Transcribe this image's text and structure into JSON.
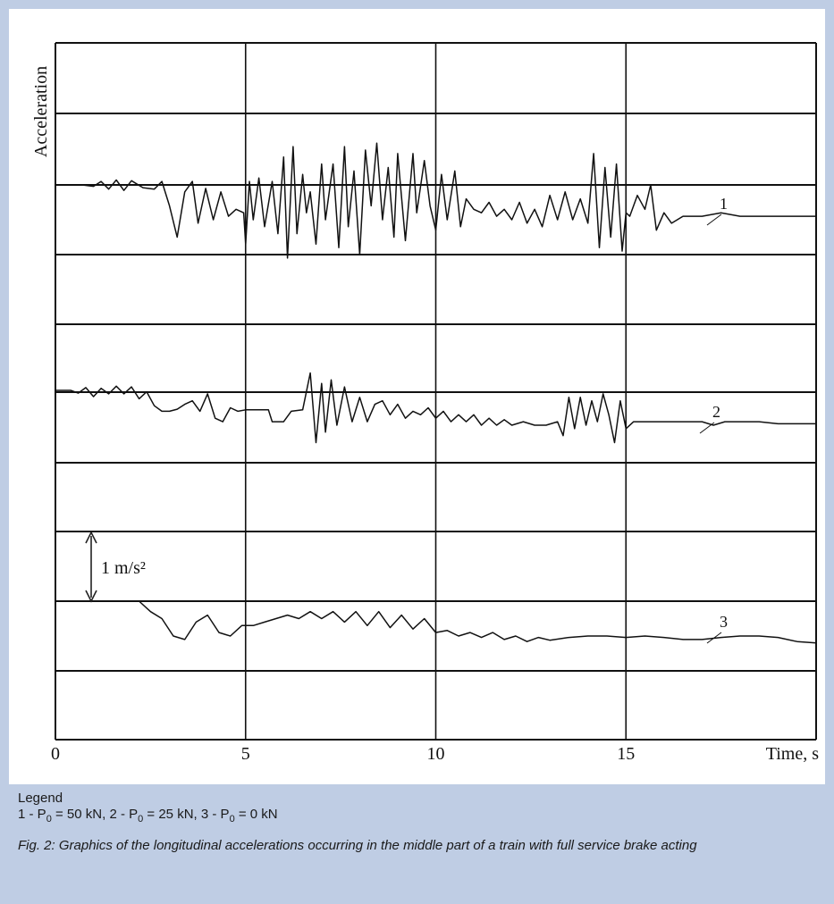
{
  "chart_data": {
    "type": "line",
    "xlabel": "Time, s",
    "ylabel": "Acceleration",
    "xlim": [
      0,
      20
    ],
    "xticks": [
      "0",
      "5",
      "10",
      "15"
    ],
    "scale_bar": {
      "label": "1 m/s²",
      "value": 1,
      "unit": "m/s²"
    },
    "grid": true,
    "series": [
      {
        "name": "1",
        "points": [
          [
            0,
            0.0
          ],
          [
            0.7,
            0.0
          ],
          [
            1.0,
            -0.02
          ],
          [
            1.2,
            0.05
          ],
          [
            1.4,
            -0.06
          ],
          [
            1.6,
            0.07
          ],
          [
            1.8,
            -0.08
          ],
          [
            2.0,
            0.06
          ],
          [
            2.3,
            -0.04
          ],
          [
            2.6,
            -0.06
          ],
          [
            2.8,
            0.05
          ],
          [
            3.0,
            -0.3
          ],
          [
            3.2,
            -0.75
          ],
          [
            3.4,
            -0.1
          ],
          [
            3.6,
            0.05
          ],
          [
            3.75,
            -0.55
          ],
          [
            3.95,
            -0.05
          ],
          [
            4.15,
            -0.5
          ],
          [
            4.35,
            -0.1
          ],
          [
            4.55,
            -0.45
          ],
          [
            4.75,
            -0.35
          ],
          [
            4.95,
            -0.4
          ],
          [
            5.0,
            -0.85
          ],
          [
            5.1,
            0.05
          ],
          [
            5.2,
            -0.5
          ],
          [
            5.35,
            0.1
          ],
          [
            5.5,
            -0.6
          ],
          [
            5.7,
            0.05
          ],
          [
            5.85,
            -0.7
          ],
          [
            6.0,
            0.4
          ],
          [
            6.1,
            -1.05
          ],
          [
            6.25,
            0.55
          ],
          [
            6.35,
            -0.7
          ],
          [
            6.5,
            0.15
          ],
          [
            6.6,
            -0.4
          ],
          [
            6.7,
            -0.1
          ],
          [
            6.85,
            -0.85
          ],
          [
            7.0,
            0.3
          ],
          [
            7.1,
            -0.5
          ],
          [
            7.3,
            0.3
          ],
          [
            7.45,
            -0.9
          ],
          [
            7.6,
            0.55
          ],
          [
            7.7,
            -0.6
          ],
          [
            7.85,
            0.2
          ],
          [
            8.0,
            -1.0
          ],
          [
            8.15,
            0.5
          ],
          [
            8.3,
            -0.3
          ],
          [
            8.45,
            0.6
          ],
          [
            8.6,
            -0.5
          ],
          [
            8.75,
            0.25
          ],
          [
            8.9,
            -0.75
          ],
          [
            9.0,
            0.45
          ],
          [
            9.2,
            -0.8
          ],
          [
            9.4,
            0.45
          ],
          [
            9.5,
            -0.4
          ],
          [
            9.7,
            0.35
          ],
          [
            9.85,
            -0.3
          ],
          [
            10.0,
            -0.65
          ],
          [
            10.15,
            0.15
          ],
          [
            10.3,
            -0.5
          ],
          [
            10.5,
            0.2
          ],
          [
            10.65,
            -0.6
          ],
          [
            10.8,
            -0.2
          ],
          [
            11.0,
            -0.35
          ],
          [
            11.2,
            -0.4
          ],
          [
            11.4,
            -0.25
          ],
          [
            11.6,
            -0.45
          ],
          [
            11.8,
            -0.35
          ],
          [
            12.0,
            -0.5
          ],
          [
            12.2,
            -0.25
          ],
          [
            12.4,
            -0.55
          ],
          [
            12.6,
            -0.35
          ],
          [
            12.8,
            -0.6
          ],
          [
            13.0,
            -0.15
          ],
          [
            13.2,
            -0.5
          ],
          [
            13.4,
            -0.1
          ],
          [
            13.6,
            -0.5
          ],
          [
            13.8,
            -0.2
          ],
          [
            14.0,
            -0.55
          ],
          [
            14.15,
            0.45
          ],
          [
            14.3,
            -0.9
          ],
          [
            14.45,
            0.25
          ],
          [
            14.6,
            -0.75
          ],
          [
            14.75,
            0.3
          ],
          [
            14.9,
            -0.95
          ],
          [
            15.0,
            -0.4
          ],
          [
            15.1,
            -0.45
          ],
          [
            15.3,
            -0.15
          ],
          [
            15.5,
            -0.35
          ],
          [
            15.65,
            0.0
          ],
          [
            15.8,
            -0.65
          ],
          [
            16.0,
            -0.4
          ],
          [
            16.2,
            -0.55
          ],
          [
            16.5,
            -0.45
          ],
          [
            17.0,
            -0.45
          ],
          [
            17.5,
            -0.4
          ],
          [
            18.0,
            -0.45
          ],
          [
            19.0,
            -0.45
          ],
          [
            20.0,
            -0.45
          ]
        ]
      },
      {
        "name": "2",
        "points": [
          [
            0,
            0.0
          ],
          [
            0.4,
            0.0
          ],
          [
            0.6,
            -0.04
          ],
          [
            0.8,
            0.04
          ],
          [
            1.0,
            -0.09
          ],
          [
            1.2,
            0.03
          ],
          [
            1.4,
            -0.05
          ],
          [
            1.6,
            0.06
          ],
          [
            1.8,
            -0.05
          ],
          [
            2.0,
            0.05
          ],
          [
            2.2,
            -0.12
          ],
          [
            2.4,
            -0.02
          ],
          [
            2.6,
            -0.22
          ],
          [
            2.8,
            -0.3
          ],
          [
            3.0,
            -0.3
          ],
          [
            3.2,
            -0.27
          ],
          [
            3.4,
            -0.2
          ],
          [
            3.6,
            -0.15
          ],
          [
            3.8,
            -0.3
          ],
          [
            4.0,
            -0.05
          ],
          [
            4.2,
            -0.4
          ],
          [
            4.4,
            -0.45
          ],
          [
            4.6,
            -0.25
          ],
          [
            4.8,
            -0.3
          ],
          [
            5.0,
            -0.28
          ],
          [
            5.3,
            -0.28
          ],
          [
            5.6,
            -0.28
          ],
          [
            5.7,
            -0.45
          ],
          [
            6.0,
            -0.45
          ],
          [
            6.2,
            -0.3
          ],
          [
            6.5,
            -0.28
          ],
          [
            6.7,
            0.25
          ],
          [
            6.85,
            -0.75
          ],
          [
            7.0,
            0.1
          ],
          [
            7.1,
            -0.6
          ],
          [
            7.25,
            0.15
          ],
          [
            7.4,
            -0.5
          ],
          [
            7.6,
            0.05
          ],
          [
            7.8,
            -0.45
          ],
          [
            8.0,
            -0.1
          ],
          [
            8.2,
            -0.45
          ],
          [
            8.4,
            -0.2
          ],
          [
            8.6,
            -0.15
          ],
          [
            8.8,
            -0.35
          ],
          [
            9.0,
            -0.2
          ],
          [
            9.2,
            -0.4
          ],
          [
            9.4,
            -0.3
          ],
          [
            9.6,
            -0.35
          ],
          [
            9.8,
            -0.25
          ],
          [
            10.0,
            -0.4
          ],
          [
            10.2,
            -0.3
          ],
          [
            10.4,
            -0.45
          ],
          [
            10.6,
            -0.35
          ],
          [
            10.8,
            -0.45
          ],
          [
            11.0,
            -0.35
          ],
          [
            11.2,
            -0.5
          ],
          [
            11.4,
            -0.4
          ],
          [
            11.6,
            -0.5
          ],
          [
            11.8,
            -0.42
          ],
          [
            12.0,
            -0.5
          ],
          [
            12.3,
            -0.45
          ],
          [
            12.6,
            -0.5
          ],
          [
            12.9,
            -0.5
          ],
          [
            13.2,
            -0.45
          ],
          [
            13.35,
            -0.65
          ],
          [
            13.5,
            -0.1
          ],
          [
            13.65,
            -0.55
          ],
          [
            13.8,
            -0.1
          ],
          [
            13.95,
            -0.5
          ],
          [
            14.1,
            -0.15
          ],
          [
            14.25,
            -0.45
          ],
          [
            14.4,
            -0.05
          ],
          [
            14.55,
            -0.35
          ],
          [
            14.7,
            -0.75
          ],
          [
            14.85,
            -0.15
          ],
          [
            15.0,
            -0.55
          ],
          [
            15.2,
            -0.45
          ],
          [
            15.5,
            -0.45
          ],
          [
            16.0,
            -0.45
          ],
          [
            17.0,
            -0.45
          ],
          [
            17.3,
            -0.5
          ],
          [
            17.6,
            -0.45
          ],
          [
            18.5,
            -0.45
          ],
          [
            19.0,
            -0.48
          ],
          [
            20.0,
            -0.48
          ]
        ]
      },
      {
        "name": "3",
        "points": [
          [
            0,
            0.0
          ],
          [
            2.2,
            0.0
          ],
          [
            2.5,
            -0.15
          ],
          [
            2.8,
            -0.25
          ],
          [
            3.1,
            -0.5
          ],
          [
            3.4,
            -0.55
          ],
          [
            3.7,
            -0.3
          ],
          [
            4.0,
            -0.2
          ],
          [
            4.3,
            -0.45
          ],
          [
            4.6,
            -0.5
          ],
          [
            4.9,
            -0.35
          ],
          [
            5.2,
            -0.35
          ],
          [
            5.5,
            -0.3
          ],
          [
            5.8,
            -0.25
          ],
          [
            6.1,
            -0.2
          ],
          [
            6.4,
            -0.25
          ],
          [
            6.7,
            -0.15
          ],
          [
            7.0,
            -0.25
          ],
          [
            7.3,
            -0.15
          ],
          [
            7.6,
            -0.3
          ],
          [
            7.9,
            -0.15
          ],
          [
            8.2,
            -0.35
          ],
          [
            8.5,
            -0.15
          ],
          [
            8.8,
            -0.38
          ],
          [
            9.1,
            -0.2
          ],
          [
            9.4,
            -0.4
          ],
          [
            9.7,
            -0.25
          ],
          [
            10.0,
            -0.45
          ],
          [
            10.3,
            -0.42
          ],
          [
            10.6,
            -0.5
          ],
          [
            10.9,
            -0.45
          ],
          [
            11.2,
            -0.52
          ],
          [
            11.5,
            -0.45
          ],
          [
            11.8,
            -0.55
          ],
          [
            12.1,
            -0.5
          ],
          [
            12.4,
            -0.58
          ],
          [
            12.7,
            -0.52
          ],
          [
            13.0,
            -0.56
          ],
          [
            13.5,
            -0.52
          ],
          [
            14.0,
            -0.5
          ],
          [
            14.5,
            -0.5
          ],
          [
            15.0,
            -0.52
          ],
          [
            15.5,
            -0.5
          ],
          [
            16.0,
            -0.52
          ],
          [
            16.5,
            -0.55
          ],
          [
            17.0,
            -0.55
          ],
          [
            17.5,
            -0.52
          ],
          [
            18.0,
            -0.5
          ],
          [
            18.5,
            -0.5
          ],
          [
            19.0,
            -0.52
          ],
          [
            19.5,
            -0.58
          ],
          [
            20.0,
            -0.6
          ]
        ]
      }
    ]
  },
  "legend": {
    "heading": "Legend",
    "entries": [
      {
        "num": "1 - P",
        "sub": "0",
        "rest": " = 50 kN"
      },
      {
        "num": "2 - P",
        "sub": "0",
        "rest": " = 25 kN"
      },
      {
        "num": "3 - P",
        "sub": "0",
        "rest": " = 0 kN"
      }
    ]
  },
  "caption": "Fig. 2: Graphics of the longitudinal accelerations occurring in the middle part of a train with full service brake acting"
}
